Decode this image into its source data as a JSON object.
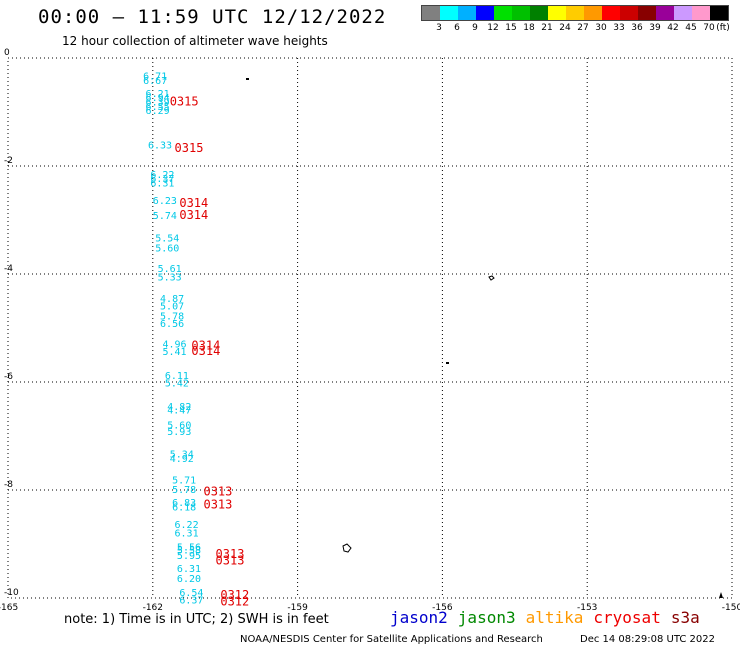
{
  "header": {
    "title": "00:00 – 11:59 UTC 12/12/2022",
    "subtitle": "12 hour collection of altimeter wave heights"
  },
  "legend": {
    "colors": [
      "#808080",
      "#00ffff",
      "#00b0ff",
      "#0000ff",
      "#00e000",
      "#00c000",
      "#008000",
      "#ffff00",
      "#ffcc00",
      "#ff9900",
      "#ff0000",
      "#cc0000",
      "#880000",
      "#990099",
      "#cc99ff",
      "#ff99cc",
      "#000000"
    ],
    "labels": [
      "3",
      "6",
      "9",
      "12",
      "15",
      "18",
      "21",
      "24",
      "27",
      "30",
      "33",
      "36",
      "39",
      "42",
      "45",
      "70",
      "(ft)"
    ]
  },
  "map": {
    "x_ticks": [
      "-165",
      "-162",
      "-159",
      "-156",
      "-153",
      "-150"
    ],
    "y_ticks": [
      "0",
      "-2",
      "-4",
      "-6",
      "-8",
      "-10"
    ],
    "lon_range": [
      -165,
      -150
    ],
    "lat_range": [
      -10,
      0
    ],
    "swh_color": "#00c8e6",
    "time_color": "#e00000",
    "swh_points": [
      {
        "lon": -162.2,
        "lat": -0.4,
        "v": "6.71"
      },
      {
        "lon": -162.2,
        "lat": -0.48,
        "v": "6.67"
      },
      {
        "lon": -162.15,
        "lat": -0.72,
        "v": "6.21"
      },
      {
        "lon": -162.15,
        "lat": -0.8,
        "v": "6.94"
      },
      {
        "lon": -162.15,
        "lat": -0.88,
        "v": "6.39"
      },
      {
        "lon": -162.15,
        "lat": -0.96,
        "v": "6.55"
      },
      {
        "lon": -162.15,
        "lat": -1.04,
        "v": "6.29"
      },
      {
        "lon": -162.1,
        "lat": -1.68,
        "v": "6.33"
      },
      {
        "lon": -162.05,
        "lat": -2.22,
        "v": "6.22"
      },
      {
        "lon": -162.05,
        "lat": -2.3,
        "v": "6.37"
      },
      {
        "lon": -162.05,
        "lat": -2.38,
        "v": "6.31"
      },
      {
        "lon": -162.0,
        "lat": -2.7,
        "v": "6.23"
      },
      {
        "lon": -162.0,
        "lat": -2.98,
        "v": "5.74"
      },
      {
        "lon": -161.95,
        "lat": -3.4,
        "v": "5.54"
      },
      {
        "lon": -161.95,
        "lat": -3.58,
        "v": "5.60"
      },
      {
        "lon": -161.9,
        "lat": -3.96,
        "v": "5.61"
      },
      {
        "lon": -161.9,
        "lat": -4.12,
        "v": "5.33"
      },
      {
        "lon": -161.85,
        "lat": -4.52,
        "v": "4.87"
      },
      {
        "lon": -161.85,
        "lat": -4.66,
        "v": "5.07"
      },
      {
        "lon": -161.85,
        "lat": -4.84,
        "v": "5.78"
      },
      {
        "lon": -161.85,
        "lat": -4.98,
        "v": "6.56"
      },
      {
        "lon": -161.8,
        "lat": -5.36,
        "v": "4.96"
      },
      {
        "lon": -161.8,
        "lat": -5.5,
        "v": "5.41"
      },
      {
        "lon": -161.75,
        "lat": -5.94,
        "v": "6.11"
      },
      {
        "lon": -161.75,
        "lat": -6.08,
        "v": "5.42"
      },
      {
        "lon": -161.7,
        "lat": -6.52,
        "v": "4.82"
      },
      {
        "lon": -161.7,
        "lat": -6.58,
        "v": "4.47"
      },
      {
        "lon": -161.7,
        "lat": -6.86,
        "v": "5.60"
      },
      {
        "lon": -161.7,
        "lat": -6.98,
        "v": "5.93"
      },
      {
        "lon": -161.65,
        "lat": -7.4,
        "v": "5.34"
      },
      {
        "lon": -161.65,
        "lat": -7.48,
        "v": "4.92"
      },
      {
        "lon": -161.6,
        "lat": -7.88,
        "v": "5.71"
      },
      {
        "lon": -161.6,
        "lat": -8.06,
        "v": "5.78"
      },
      {
        "lon": -161.6,
        "lat": -8.3,
        "v": "6.83"
      },
      {
        "lon": -161.6,
        "lat": -8.38,
        "v": "6.18"
      },
      {
        "lon": -161.55,
        "lat": -8.7,
        "v": "6.22"
      },
      {
        "lon": -161.55,
        "lat": -8.86,
        "v": "6.31"
      },
      {
        "lon": -161.5,
        "lat": -9.12,
        "v": "5.56"
      },
      {
        "lon": -161.5,
        "lat": -9.18,
        "v": "5.58"
      },
      {
        "lon": -161.5,
        "lat": -9.28,
        "v": "5.95"
      },
      {
        "lon": -161.5,
        "lat": -9.52,
        "v": "6.31"
      },
      {
        "lon": -161.5,
        "lat": -9.7,
        "v": "6.20"
      },
      {
        "lon": -161.45,
        "lat": -9.96,
        "v": "6.54"
      },
      {
        "lon": -161.45,
        "lat": -10.1,
        "v": "6.37"
      }
    ],
    "time_labels": [
      {
        "lon": -161.65,
        "lat": -0.88,
        "t": "0315"
      },
      {
        "lon": -161.55,
        "lat": -1.74,
        "t": "0315"
      },
      {
        "lon": -161.45,
        "lat": -2.76,
        "t": "0314"
      },
      {
        "lon": -161.45,
        "lat": -2.98,
        "t": "0314"
      },
      {
        "lon": -161.2,
        "lat": -5.4,
        "t": "0314"
      },
      {
        "lon": -161.2,
        "lat": -5.5,
        "t": "0314"
      },
      {
        "lon": -160.95,
        "lat": -8.1,
        "t": "0313"
      },
      {
        "lon": -160.95,
        "lat": -8.34,
        "t": "0313"
      },
      {
        "lon": -160.7,
        "lat": -9.26,
        "t": "0313"
      },
      {
        "lon": -160.7,
        "lat": -9.38,
        "t": "0313"
      },
      {
        "lon": -160.6,
        "lat": -10.02,
        "t": "0312"
      },
      {
        "lon": -160.6,
        "lat": -10.14,
        "t": "0312"
      }
    ]
  },
  "footer": {
    "note": "note: 1) Time is in UTC; 2) SWH is in feet",
    "missions": [
      {
        "name": "jason2",
        "color": "#0000cc"
      },
      {
        "name": "jason3",
        "color": "#008800"
      },
      {
        "name": "altika",
        "color": "#ff9900"
      },
      {
        "name": "cryosat",
        "color": "#ee0000"
      },
      {
        "name": "s3a",
        "color": "#880000"
      }
    ],
    "credit": "NOAA/NESDIS Center for Satellite Applications and Research",
    "generated": "Dec 14 08:29:08 UTC 2022"
  }
}
